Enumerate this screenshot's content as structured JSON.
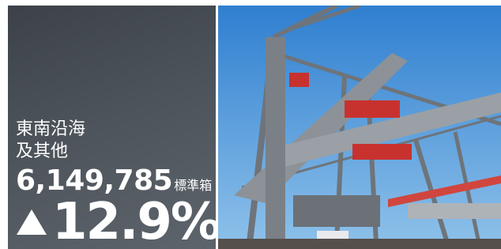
{
  "region": {
    "line1": "東南沿海",
    "line2": "及其他"
  },
  "stat": {
    "value": "6,149,785",
    "unit": "標準箱",
    "change": "12.9%"
  }
}
